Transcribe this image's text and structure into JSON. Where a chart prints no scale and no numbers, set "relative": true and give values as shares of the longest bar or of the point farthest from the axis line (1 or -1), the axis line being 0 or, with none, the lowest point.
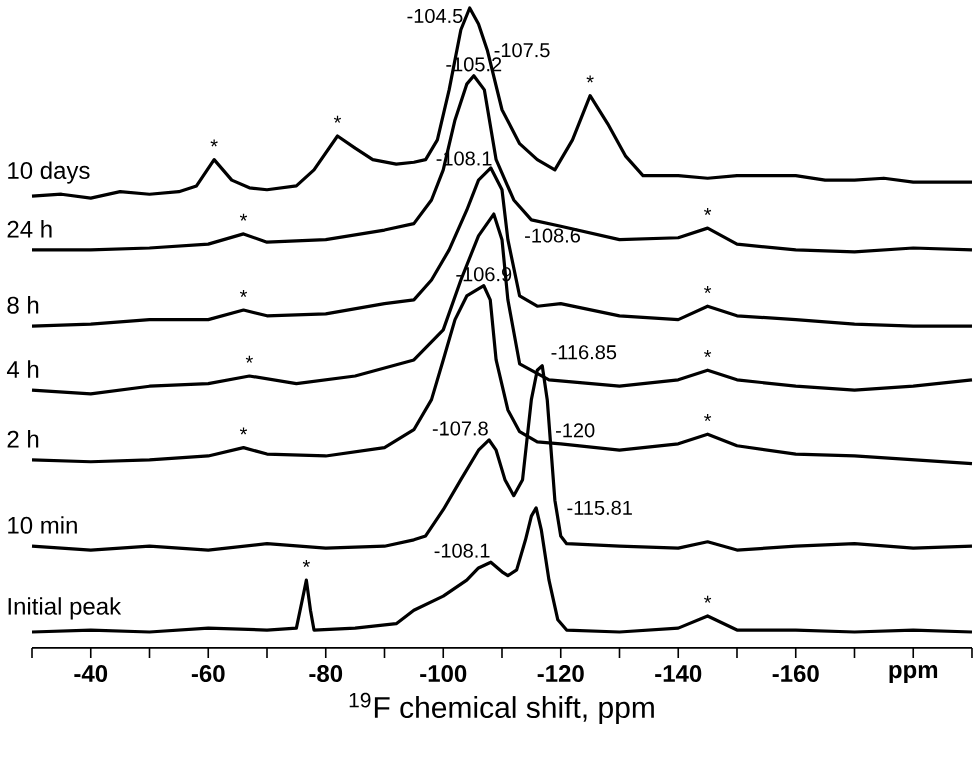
{
  "chart_data": {
    "type": "line",
    "relative": true,
    "xlabel": "$^{19}$F chemical shift, ppm",
    "xlim": [
      -30,
      -190
    ],
    "xticks": [
      {
        "value": -30,
        "label": null
      },
      -40,
      {
        "value": -50,
        "label": null
      },
      -60,
      {
        "value": -70,
        "label": null
      },
      -80,
      {
        "value": -90,
        "label": null
      },
      -100,
      {
        "value": -110,
        "label": null
      },
      -120,
      {
        "value": -130,
        "label": null
      },
      -140,
      {
        "value": -150,
        "label": null
      },
      -160,
      {
        "value": -170,
        "label": null
      },
      {
        "value": -180,
        "label": "ppm"
      },
      {
        "value": -190,
        "label": null
      }
    ],
    "line_style": "solid",
    "series": [
      {
        "name": "10 days",
        "color": "#000000",
        "x": [
          -30,
          -35,
          -40,
          -45,
          -50,
          -55,
          -58,
          -61,
          -64,
          -67,
          -70,
          -75,
          -78,
          -82,
          -85,
          -88,
          -92,
          -95,
          -97,
          -99,
          -101,
          -103,
          -104.5,
          -106,
          -107.5,
          -110,
          -113,
          -116,
          -119,
          -122,
          -125,
          -128,
          -131,
          -134,
          -140,
          -145,
          -150,
          -160,
          -165,
          -170,
          -175,
          -180,
          -190
        ],
        "values": [
          0.706,
          0.709,
          0.703,
          0.713,
          0.709,
          0.713,
          0.722,
          0.763,
          0.731,
          0.719,
          0.716,
          0.722,
          0.747,
          0.8,
          0.781,
          0.763,
          0.756,
          0.759,
          0.763,
          0.794,
          0.872,
          0.966,
          1.0,
          0.975,
          0.934,
          0.841,
          0.788,
          0.763,
          0.747,
          0.794,
          0.863,
          0.819,
          0.769,
          0.738,
          0.738,
          0.734,
          0.738,
          0.738,
          0.731,
          0.731,
          0.734,
          0.728,
          0.728
        ]
      },
      {
        "name": "24 h",
        "color": "#000000",
        "x": [
          -30,
          -40,
          -50,
          -60,
          -66,
          -70,
          -80,
          -90,
          -95,
          -98,
          -100,
          -102,
          -104,
          -105.2,
          -107,
          -109,
          -112,
          -115,
          -120,
          -130,
          -140,
          -145,
          -150,
          -160,
          -170,
          -180,
          -190
        ],
        "values": [
          0.622,
          0.622,
          0.625,
          0.631,
          0.647,
          0.634,
          0.638,
          0.653,
          0.663,
          0.7,
          0.747,
          0.825,
          0.881,
          0.894,
          0.872,
          0.763,
          0.7,
          0.669,
          0.659,
          0.638,
          0.641,
          0.656,
          0.631,
          0.622,
          0.619,
          0.625,
          0.622
        ]
      },
      {
        "name": "8 h",
        "color": "#000000",
        "x": [
          -30,
          -40,
          -50,
          -60,
          -66,
          -70,
          -80,
          -90,
          -95,
          -98,
          -101,
          -104,
          -106,
          -108.1,
          -110,
          -111,
          -113,
          -116,
          -120,
          -130,
          -140,
          -145,
          -150,
          -160,
          -170,
          -180,
          -190
        ],
        "values": [
          0.503,
          0.506,
          0.513,
          0.513,
          0.528,
          0.519,
          0.522,
          0.538,
          0.544,
          0.575,
          0.622,
          0.684,
          0.731,
          0.75,
          0.716,
          0.638,
          0.55,
          0.534,
          0.538,
          0.519,
          0.513,
          0.534,
          0.519,
          0.513,
          0.506,
          0.503,
          0.503
        ]
      },
      {
        "name": "4 h",
        "color": "#000000",
        "x": [
          -30,
          -40,
          -50,
          -60,
          -67,
          -75,
          -85,
          -95,
          -100,
          -103,
          -106,
          -108.6,
          -110,
          -111,
          -113,
          -118,
          -130,
          -140,
          -145,
          -150,
          -160,
          -170,
          -180,
          -190
        ],
        "values": [
          0.403,
          0.397,
          0.409,
          0.413,
          0.425,
          0.413,
          0.425,
          0.45,
          0.497,
          0.575,
          0.644,
          0.678,
          0.638,
          0.544,
          0.444,
          0.419,
          0.409,
          0.419,
          0.434,
          0.419,
          0.409,
          0.403,
          0.409,
          0.419
        ]
      },
      {
        "name": "2 h",
        "color": "#000000",
        "x": [
          -30,
          -40,
          -50,
          -60,
          -66,
          -70,
          -80,
          -90,
          -95,
          -98,
          -100,
          -102,
          -104,
          -106.9,
          -108,
          -109,
          -111,
          -113,
          -116,
          -120,
          -130,
          -140,
          -145,
          -150,
          -160,
          -170,
          -180,
          -190
        ],
        "values": [
          0.294,
          0.291,
          0.294,
          0.3,
          0.313,
          0.303,
          0.3,
          0.313,
          0.341,
          0.388,
          0.45,
          0.513,
          0.55,
          0.566,
          0.544,
          0.45,
          0.372,
          0.338,
          0.322,
          0.319,
          0.309,
          0.319,
          0.334,
          0.316,
          0.303,
          0.3,
          0.294,
          0.288
        ]
      },
      {
        "name": "10 min",
        "color": "#000000",
        "x": [
          -30,
          -40,
          -50,
          -60,
          -70,
          -80,
          -90,
          -95,
          -97,
          -100,
          -103,
          -106,
          -107.8,
          -109,
          -110.5,
          -112,
          -113.5,
          -115,
          -116,
          -116.85,
          -117.7,
          -119,
          -120,
          -121,
          -130,
          -140,
          -145,
          -150,
          -160,
          -170,
          -180,
          -190
        ],
        "values": [
          0.159,
          0.153,
          0.159,
          0.153,
          0.163,
          0.156,
          0.159,
          0.169,
          0.175,
          0.216,
          0.263,
          0.309,
          0.325,
          0.309,
          0.263,
          0.238,
          0.263,
          0.388,
          0.434,
          0.441,
          0.388,
          0.231,
          0.175,
          0.163,
          0.159,
          0.156,
          0.166,
          0.153,
          0.159,
          0.163,
          0.156,
          0.159
        ]
      },
      {
        "name": "Initial peak",
        "color": "#000000",
        "x": [
          -30,
          -40,
          -50,
          -60,
          -70,
          -75,
          -76,
          -76.7,
          -77.4,
          -78,
          -85,
          -92,
          -95,
          -100,
          -104,
          -106,
          -108.1,
          -110,
          -111,
          -112.5,
          -114,
          -115,
          -115.81,
          -116.7,
          -118,
          -119.5,
          -121,
          -130,
          -140,
          -145,
          -150,
          -160,
          -170,
          -180,
          -190
        ],
        "values": [
          0.025,
          0.028,
          0.025,
          0.031,
          0.028,
          0.031,
          0.075,
          0.106,
          0.059,
          0.028,
          0.031,
          0.038,
          0.059,
          0.081,
          0.106,
          0.125,
          0.134,
          0.119,
          0.113,
          0.122,
          0.169,
          0.206,
          0.219,
          0.184,
          0.106,
          0.044,
          0.028,
          0.025,
          0.031,
          0.05,
          0.028,
          0.028,
          0.025,
          0.028,
          0.025
        ]
      }
    ],
    "annotations": [
      {
        "text": "-104.5",
        "x": -104.5,
        "y": 1.0
      },
      {
        "text": "-107.5",
        "x": -107.5,
        "y": 0.934
      },
      {
        "text": "-105.2",
        "x": -105.2,
        "y": 0.894
      },
      {
        "text": "-108.1",
        "x": -108.1,
        "y": 0.75
      },
      {
        "text": "-108.6",
        "x": -108.6,
        "y": 0.678
      },
      {
        "text": "-106.9",
        "x": -106.9,
        "y": 0.566
      },
      {
        "text": "-107.8",
        "x": -107.8,
        "y": 0.325
      },
      {
        "text": "-120",
        "x": -120,
        "y": 0.319
      },
      {
        "text": "-116.85",
        "x": -116.85,
        "y": 0.441
      },
      {
        "text": "-108.1",
        "x": -108.1,
        "y": 0.134
      },
      {
        "text": "-115.81",
        "x": -115.81,
        "y": 0.219
      },
      {
        "text": "*",
        "x": -61,
        "y": 0.763
      },
      {
        "text": "*",
        "x": -82,
        "y": 0.8
      },
      {
        "text": "*",
        "x": -125,
        "y": 0.863
      },
      {
        "text": "*",
        "x": -66,
        "y": 0.647
      },
      {
        "text": "*",
        "x": -145,
        "y": 0.656
      },
      {
        "text": "*",
        "x": -66,
        "y": 0.528
      },
      {
        "text": "*",
        "x": -145,
        "y": 0.534
      },
      {
        "text": "*",
        "x": -67,
        "y": 0.425
      },
      {
        "text": "*",
        "x": -145,
        "y": 0.434
      },
      {
        "text": "*",
        "x": -66,
        "y": 0.313
      },
      {
        "text": "*",
        "x": -145,
        "y": 0.334
      },
      {
        "text": "*",
        "x": -76.7,
        "y": 0.106
      },
      {
        "text": "*",
        "x": -145,
        "y": 0.05
      }
    ]
  }
}
